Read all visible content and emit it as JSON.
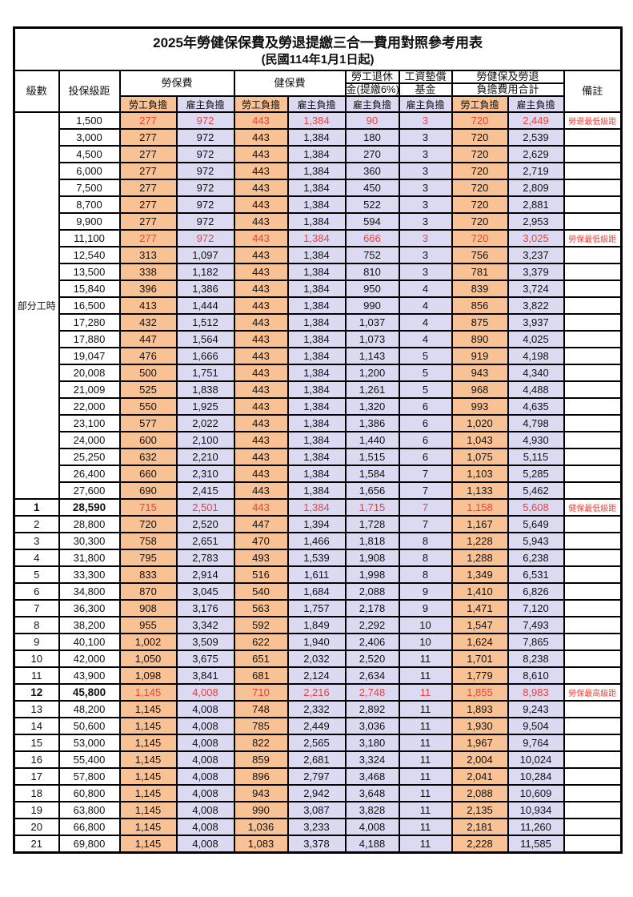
{
  "title": "2025年勞健保保費及勞退提繳三合一費用對照參考用表",
  "subtitle": "(民國114年1月1日起)",
  "colors": {
    "employee_bg": "#F9C295",
    "employer_bg": "#DCD9F2",
    "highlight_text": "#E8443C",
    "border": "#000000"
  },
  "header": {
    "level": "級數",
    "bracket": "投保級距",
    "labor": "勞保費",
    "health": "健保費",
    "pension_line1": "勞工退休",
    "pension_line2": "金(提繳6%)",
    "fund_line1": "工資墊償",
    "fund_line2": "基金",
    "total_line1": "勞健保及勞退",
    "total_line2": "負擔費用合計",
    "remark": "備註",
    "employee": "勞工負擔",
    "employer": "雇主負擔"
  },
  "part_time": {
    "label": "部分工時",
    "rowspan": 23
  },
  "rows": [
    {
      "level": "",
      "bracket": "1,500",
      "labor_emp": "277",
      "labor_er": "972",
      "health_emp": "443",
      "health_er": "1,384",
      "pension_er": "90",
      "fund_er": "3",
      "total_emp": "720",
      "total_er": "2,449",
      "note": "勞退最低級距",
      "hl": true,
      "emph": false
    },
    {
      "level": "",
      "bracket": "3,000",
      "labor_emp": "277",
      "labor_er": "972",
      "health_emp": "443",
      "health_er": "1,384",
      "pension_er": "180",
      "fund_er": "3",
      "total_emp": "720",
      "total_er": "2,539",
      "note": "",
      "hl": false,
      "emph": false
    },
    {
      "level": "",
      "bracket": "4,500",
      "labor_emp": "277",
      "labor_er": "972",
      "health_emp": "443",
      "health_er": "1,384",
      "pension_er": "270",
      "fund_er": "3",
      "total_emp": "720",
      "total_er": "2,629",
      "note": "",
      "hl": false,
      "emph": false
    },
    {
      "level": "",
      "bracket": "6,000",
      "labor_emp": "277",
      "labor_er": "972",
      "health_emp": "443",
      "health_er": "1,384",
      "pension_er": "360",
      "fund_er": "3",
      "total_emp": "720",
      "total_er": "2,719",
      "note": "",
      "hl": false,
      "emph": false
    },
    {
      "level": "",
      "bracket": "7,500",
      "labor_emp": "277",
      "labor_er": "972",
      "health_emp": "443",
      "health_er": "1,384",
      "pension_er": "450",
      "fund_er": "3",
      "total_emp": "720",
      "total_er": "2,809",
      "note": "",
      "hl": false,
      "emph": false
    },
    {
      "level": "",
      "bracket": "8,700",
      "labor_emp": "277",
      "labor_er": "972",
      "health_emp": "443",
      "health_er": "1,384",
      "pension_er": "522",
      "fund_er": "3",
      "total_emp": "720",
      "total_er": "2,881",
      "note": "",
      "hl": false,
      "emph": false
    },
    {
      "level": "",
      "bracket": "9,900",
      "labor_emp": "277",
      "labor_er": "972",
      "health_emp": "443",
      "health_er": "1,384",
      "pension_er": "594",
      "fund_er": "3",
      "total_emp": "720",
      "total_er": "2,953",
      "note": "",
      "hl": false,
      "emph": false
    },
    {
      "level": "",
      "bracket": "11,100",
      "labor_emp": "277",
      "labor_er": "972",
      "health_emp": "443",
      "health_er": "1,384",
      "pension_er": "666",
      "fund_er": "3",
      "total_emp": "720",
      "total_er": "3,025",
      "note": "勞保最低級距",
      "hl": true,
      "emph": false
    },
    {
      "level": "",
      "bracket": "12,540",
      "labor_emp": "313",
      "labor_er": "1,097",
      "health_emp": "443",
      "health_er": "1,384",
      "pension_er": "752",
      "fund_er": "3",
      "total_emp": "756",
      "total_er": "3,237",
      "note": "",
      "hl": false,
      "emph": false
    },
    {
      "level": "",
      "bracket": "13,500",
      "labor_emp": "338",
      "labor_er": "1,182",
      "health_emp": "443",
      "health_er": "1,384",
      "pension_er": "810",
      "fund_er": "3",
      "total_emp": "781",
      "total_er": "3,379",
      "note": "",
      "hl": false,
      "emph": false
    },
    {
      "level": "",
      "bracket": "15,840",
      "labor_emp": "396",
      "labor_er": "1,386",
      "health_emp": "443",
      "health_er": "1,384",
      "pension_er": "950",
      "fund_er": "4",
      "total_emp": "839",
      "total_er": "3,724",
      "note": "",
      "hl": false,
      "emph": false
    },
    {
      "level": "",
      "bracket": "16,500",
      "labor_emp": "413",
      "labor_er": "1,444",
      "health_emp": "443",
      "health_er": "1,384",
      "pension_er": "990",
      "fund_er": "4",
      "total_emp": "856",
      "total_er": "3,822",
      "note": "",
      "hl": false,
      "emph": false
    },
    {
      "level": "",
      "bracket": "17,280",
      "labor_emp": "432",
      "labor_er": "1,512",
      "health_emp": "443",
      "health_er": "1,384",
      "pension_er": "1,037",
      "fund_er": "4",
      "total_emp": "875",
      "total_er": "3,937",
      "note": "",
      "hl": false,
      "emph": false
    },
    {
      "level": "",
      "bracket": "17,880",
      "labor_emp": "447",
      "labor_er": "1,564",
      "health_emp": "443",
      "health_er": "1,384",
      "pension_er": "1,073",
      "fund_er": "4",
      "total_emp": "890",
      "total_er": "4,025",
      "note": "",
      "hl": false,
      "emph": false
    },
    {
      "level": "",
      "bracket": "19,047",
      "labor_emp": "476",
      "labor_er": "1,666",
      "health_emp": "443",
      "health_er": "1,384",
      "pension_er": "1,143",
      "fund_er": "5",
      "total_emp": "919",
      "total_er": "4,198",
      "note": "",
      "hl": false,
      "emph": false
    },
    {
      "level": "",
      "bracket": "20,008",
      "labor_emp": "500",
      "labor_er": "1,751",
      "health_emp": "443",
      "health_er": "1,384",
      "pension_er": "1,200",
      "fund_er": "5",
      "total_emp": "943",
      "total_er": "4,340",
      "note": "",
      "hl": false,
      "emph": false
    },
    {
      "level": "",
      "bracket": "21,009",
      "labor_emp": "525",
      "labor_er": "1,838",
      "health_emp": "443",
      "health_er": "1,384",
      "pension_er": "1,261",
      "fund_er": "5",
      "total_emp": "968",
      "total_er": "4,488",
      "note": "",
      "hl": false,
      "emph": false
    },
    {
      "level": "",
      "bracket": "22,000",
      "labor_emp": "550",
      "labor_er": "1,925",
      "health_emp": "443",
      "health_er": "1,384",
      "pension_er": "1,320",
      "fund_er": "6",
      "total_emp": "993",
      "total_er": "4,635",
      "note": "",
      "hl": false,
      "emph": false
    },
    {
      "level": "",
      "bracket": "23,100",
      "labor_emp": "577",
      "labor_er": "2,022",
      "health_emp": "443",
      "health_er": "1,384",
      "pension_er": "1,386",
      "fund_er": "6",
      "total_emp": "1,020",
      "total_er": "4,798",
      "note": "",
      "hl": false,
      "emph": false
    },
    {
      "level": "",
      "bracket": "24,000",
      "labor_emp": "600",
      "labor_er": "2,100",
      "health_emp": "443",
      "health_er": "1,384",
      "pension_er": "1,440",
      "fund_er": "6",
      "total_emp": "1,043",
      "total_er": "4,930",
      "note": "",
      "hl": false,
      "emph": false
    },
    {
      "level": "",
      "bracket": "25,250",
      "labor_emp": "632",
      "labor_er": "2,210",
      "health_emp": "443",
      "health_er": "1,384",
      "pension_er": "1,515",
      "fund_er": "6",
      "total_emp": "1,075",
      "total_er": "5,115",
      "note": "",
      "hl": false,
      "emph": false
    },
    {
      "level": "",
      "bracket": "26,400",
      "labor_emp": "660",
      "labor_er": "2,310",
      "health_emp": "443",
      "health_er": "1,384",
      "pension_er": "1,584",
      "fund_er": "7",
      "total_emp": "1,103",
      "total_er": "5,285",
      "note": "",
      "hl": false,
      "emph": false
    },
    {
      "level": "",
      "bracket": "27,600",
      "labor_emp": "690",
      "labor_er": "2,415",
      "health_emp": "443",
      "health_er": "1,384",
      "pension_er": "1,656",
      "fund_er": "7",
      "total_emp": "1,133",
      "total_er": "5,462",
      "note": "",
      "hl": false,
      "emph": false
    },
    {
      "level": "1",
      "bracket": "28,590",
      "labor_emp": "715",
      "labor_er": "2,501",
      "health_emp": "443",
      "health_er": "1,384",
      "pension_er": "1,715",
      "fund_er": "7",
      "total_emp": "1,158",
      "total_er": "5,608",
      "note": "健保最低級距",
      "hl": true,
      "emph": true
    },
    {
      "level": "2",
      "bracket": "28,800",
      "labor_emp": "720",
      "labor_er": "2,520",
      "health_emp": "447",
      "health_er": "1,394",
      "pension_er": "1,728",
      "fund_er": "7",
      "total_emp": "1,167",
      "total_er": "5,649",
      "note": "",
      "hl": false,
      "emph": false
    },
    {
      "level": "3",
      "bracket": "30,300",
      "labor_emp": "758",
      "labor_er": "2,651",
      "health_emp": "470",
      "health_er": "1,466",
      "pension_er": "1,818",
      "fund_er": "8",
      "total_emp": "1,228",
      "total_er": "5,943",
      "note": "",
      "hl": false,
      "emph": false
    },
    {
      "level": "4",
      "bracket": "31,800",
      "labor_emp": "795",
      "labor_er": "2,783",
      "health_emp": "493",
      "health_er": "1,539",
      "pension_er": "1,908",
      "fund_er": "8",
      "total_emp": "1,288",
      "total_er": "6,238",
      "note": "",
      "hl": false,
      "emph": false
    },
    {
      "level": "5",
      "bracket": "33,300",
      "labor_emp": "833",
      "labor_er": "2,914",
      "health_emp": "516",
      "health_er": "1,611",
      "pension_er": "1,998",
      "fund_er": "8",
      "total_emp": "1,349",
      "total_er": "6,531",
      "note": "",
      "hl": false,
      "emph": false
    },
    {
      "level": "6",
      "bracket": "34,800",
      "labor_emp": "870",
      "labor_er": "3,045",
      "health_emp": "540",
      "health_er": "1,684",
      "pension_er": "2,088",
      "fund_er": "9",
      "total_emp": "1,410",
      "total_er": "6,826",
      "note": "",
      "hl": false,
      "emph": false
    },
    {
      "level": "7",
      "bracket": "36,300",
      "labor_emp": "908",
      "labor_er": "3,176",
      "health_emp": "563",
      "health_er": "1,757",
      "pension_er": "2,178",
      "fund_er": "9",
      "total_emp": "1,471",
      "total_er": "7,120",
      "note": "",
      "hl": false,
      "emph": false
    },
    {
      "level": "8",
      "bracket": "38,200",
      "labor_emp": "955",
      "labor_er": "3,342",
      "health_emp": "592",
      "health_er": "1,849",
      "pension_er": "2,292",
      "fund_er": "10",
      "total_emp": "1,547",
      "total_er": "7,493",
      "note": "",
      "hl": false,
      "emph": false
    },
    {
      "level": "9",
      "bracket": "40,100",
      "labor_emp": "1,002",
      "labor_er": "3,509",
      "health_emp": "622",
      "health_er": "1,940",
      "pension_er": "2,406",
      "fund_er": "10",
      "total_emp": "1,624",
      "total_er": "7,865",
      "note": "",
      "hl": false,
      "emph": false
    },
    {
      "level": "10",
      "bracket": "42,000",
      "labor_emp": "1,050",
      "labor_er": "3,675",
      "health_emp": "651",
      "health_er": "2,032",
      "pension_er": "2,520",
      "fund_er": "11",
      "total_emp": "1,701",
      "total_er": "8,238",
      "note": "",
      "hl": false,
      "emph": false
    },
    {
      "level": "11",
      "bracket": "43,900",
      "labor_emp": "1,098",
      "labor_er": "3,841",
      "health_emp": "681",
      "health_er": "2,124",
      "pension_er": "2,634",
      "fund_er": "11",
      "total_emp": "1,779",
      "total_er": "8,610",
      "note": "",
      "hl": false,
      "emph": false
    },
    {
      "level": "12",
      "bracket": "45,800",
      "labor_emp": "1,145",
      "labor_er": "4,008",
      "health_emp": "710",
      "health_er": "2,216",
      "pension_er": "2,748",
      "fund_er": "11",
      "total_emp": "1,855",
      "total_er": "8,983",
      "note": "勞保最高級距",
      "hl": true,
      "emph": true
    },
    {
      "level": "13",
      "bracket": "48,200",
      "labor_emp": "1,145",
      "labor_er": "4,008",
      "health_emp": "748",
      "health_er": "2,332",
      "pension_er": "2,892",
      "fund_er": "11",
      "total_emp": "1,893",
      "total_er": "9,243",
      "note": "",
      "hl": false,
      "emph": false
    },
    {
      "level": "14",
      "bracket": "50,600",
      "labor_emp": "1,145",
      "labor_er": "4,008",
      "health_emp": "785",
      "health_er": "2,449",
      "pension_er": "3,036",
      "fund_er": "11",
      "total_emp": "1,930",
      "total_er": "9,504",
      "note": "",
      "hl": false,
      "emph": false
    },
    {
      "level": "15",
      "bracket": "53,000",
      "labor_emp": "1,145",
      "labor_er": "4,008",
      "health_emp": "822",
      "health_er": "2,565",
      "pension_er": "3,180",
      "fund_er": "11",
      "total_emp": "1,967",
      "total_er": "9,764",
      "note": "",
      "hl": false,
      "emph": false
    },
    {
      "level": "16",
      "bracket": "55,400",
      "labor_emp": "1,145",
      "labor_er": "4,008",
      "health_emp": "859",
      "health_er": "2,681",
      "pension_er": "3,324",
      "fund_er": "11",
      "total_emp": "2,004",
      "total_er": "10,024",
      "note": "",
      "hl": false,
      "emph": false
    },
    {
      "level": "17",
      "bracket": "57,800",
      "labor_emp": "1,145",
      "labor_er": "4,008",
      "health_emp": "896",
      "health_er": "2,797",
      "pension_er": "3,468",
      "fund_er": "11",
      "total_emp": "2,041",
      "total_er": "10,284",
      "note": "",
      "hl": false,
      "emph": false
    },
    {
      "level": "18",
      "bracket": "60,800",
      "labor_emp": "1,145",
      "labor_er": "4,008",
      "health_emp": "943",
      "health_er": "2,942",
      "pension_er": "3,648",
      "fund_er": "11",
      "total_emp": "2,088",
      "total_er": "10,609",
      "note": "",
      "hl": false,
      "emph": false
    },
    {
      "level": "19",
      "bracket": "63,800",
      "labor_emp": "1,145",
      "labor_er": "4,008",
      "health_emp": "990",
      "health_er": "3,087",
      "pension_er": "3,828",
      "fund_er": "11",
      "total_emp": "2,135",
      "total_er": "10,934",
      "note": "",
      "hl": false,
      "emph": false
    },
    {
      "level": "20",
      "bracket": "66,800",
      "labor_emp": "1,145",
      "labor_er": "4,008",
      "health_emp": "1,036",
      "health_er": "3,233",
      "pension_er": "4,008",
      "fund_er": "11",
      "total_emp": "2,181",
      "total_er": "11,260",
      "note": "",
      "hl": false,
      "emph": false
    },
    {
      "level": "21",
      "bracket": "69,800",
      "labor_emp": "1,145",
      "labor_er": "4,008",
      "health_emp": "1,083",
      "health_er": "3,378",
      "pension_er": "4,188",
      "fund_er": "11",
      "total_emp": "2,228",
      "total_er": "11,585",
      "note": "",
      "hl": false,
      "emph": false
    }
  ]
}
